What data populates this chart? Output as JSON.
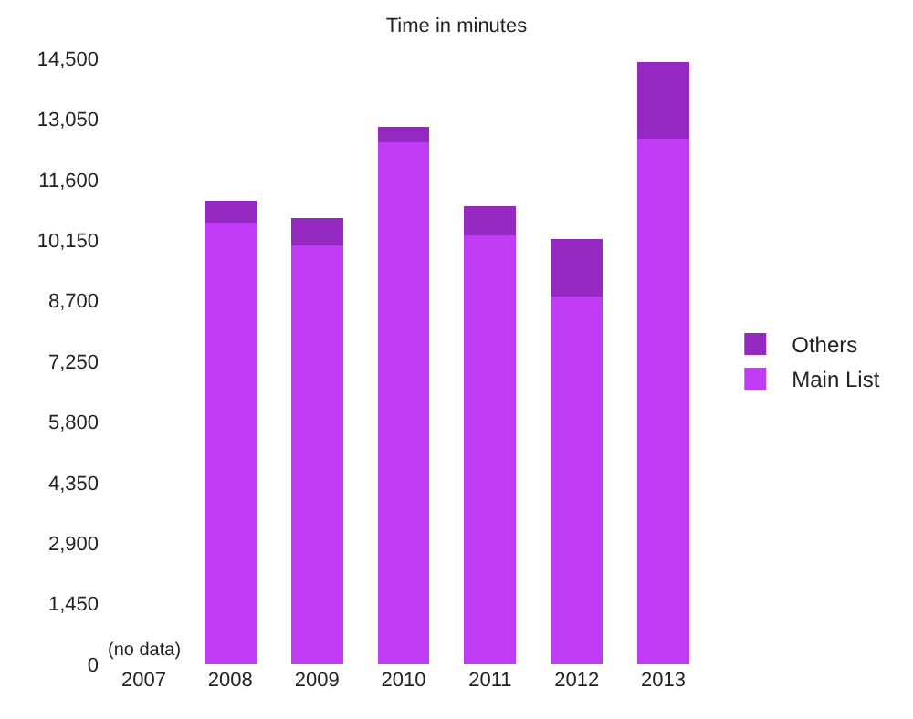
{
  "chart_data": {
    "type": "bar",
    "title": "Time in minutes",
    "categories": [
      "2007",
      "2008",
      "2009",
      "2010",
      "2011",
      "2012",
      "2013"
    ],
    "series": [
      {
        "name": "Main List",
        "color": "#c03cf4",
        "values": [
          null,
          10570,
          10020,
          12500,
          10260,
          8790,
          12580
        ]
      },
      {
        "name": "Others",
        "color": "#9428c0",
        "values": [
          null,
          530,
          650,
          360,
          700,
          1380,
          1830
        ]
      }
    ],
    "stacked": true,
    "ylim": [
      0,
      14500
    ],
    "yticks": [
      {
        "value": 0,
        "label": "0"
      },
      {
        "value": 1450,
        "label": "1,450"
      },
      {
        "value": 2900,
        "label": "2,900"
      },
      {
        "value": 4350,
        "label": "4,350"
      },
      {
        "value": 5800,
        "label": "5,800"
      },
      {
        "value": 7250,
        "label": "7,250"
      },
      {
        "value": 8700,
        "label": "8,700"
      },
      {
        "value": 10150,
        "label": "10,150"
      },
      {
        "value": 11600,
        "label": "11,600"
      },
      {
        "value": 13050,
        "label": "13,050"
      },
      {
        "value": 14500,
        "label": "14,500"
      }
    ],
    "annotations": [
      "(no data)"
    ],
    "grid": false,
    "legend": "right"
  }
}
